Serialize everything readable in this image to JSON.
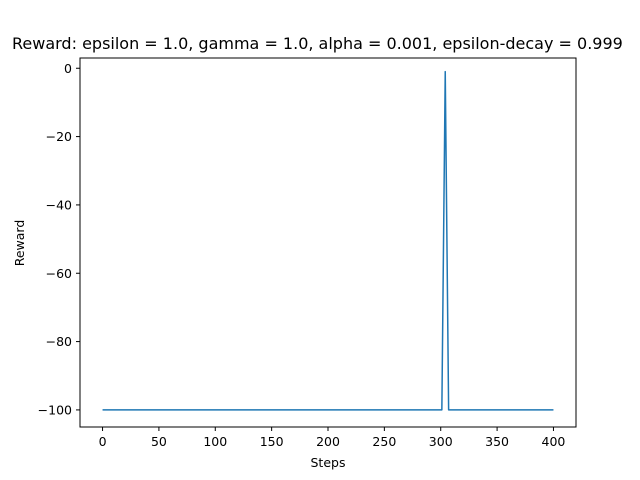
{
  "chart_data": {
    "type": "line",
    "title": "Reward: epsilon = 1.0, gamma = 1.0, alpha = 0.001, epsilon-decay = 0.999",
    "xlabel": "Steps",
    "ylabel": "Reward",
    "xlim": [
      -20,
      420
    ],
    "ylim": [
      -105,
      3
    ],
    "xticks": [
      0,
      50,
      100,
      150,
      200,
      250,
      300,
      350,
      400
    ],
    "xtick_labels": [
      "0",
      "50",
      "100",
      "150",
      "200",
      "250",
      "300",
      "350",
      "400"
    ],
    "yticks": [
      0,
      -20,
      -40,
      -60,
      -80,
      -100
    ],
    "ytick_labels": [
      "0",
      "−20",
      "−40",
      "−60",
      "−80",
      "−100"
    ],
    "grid": false,
    "series": [
      {
        "color": "#1f77b4",
        "x": [
          0,
          301,
          304,
          307,
          400
        ],
        "y": [
          -100,
          -100,
          -1,
          -100,
          -100
        ]
      }
    ]
  }
}
